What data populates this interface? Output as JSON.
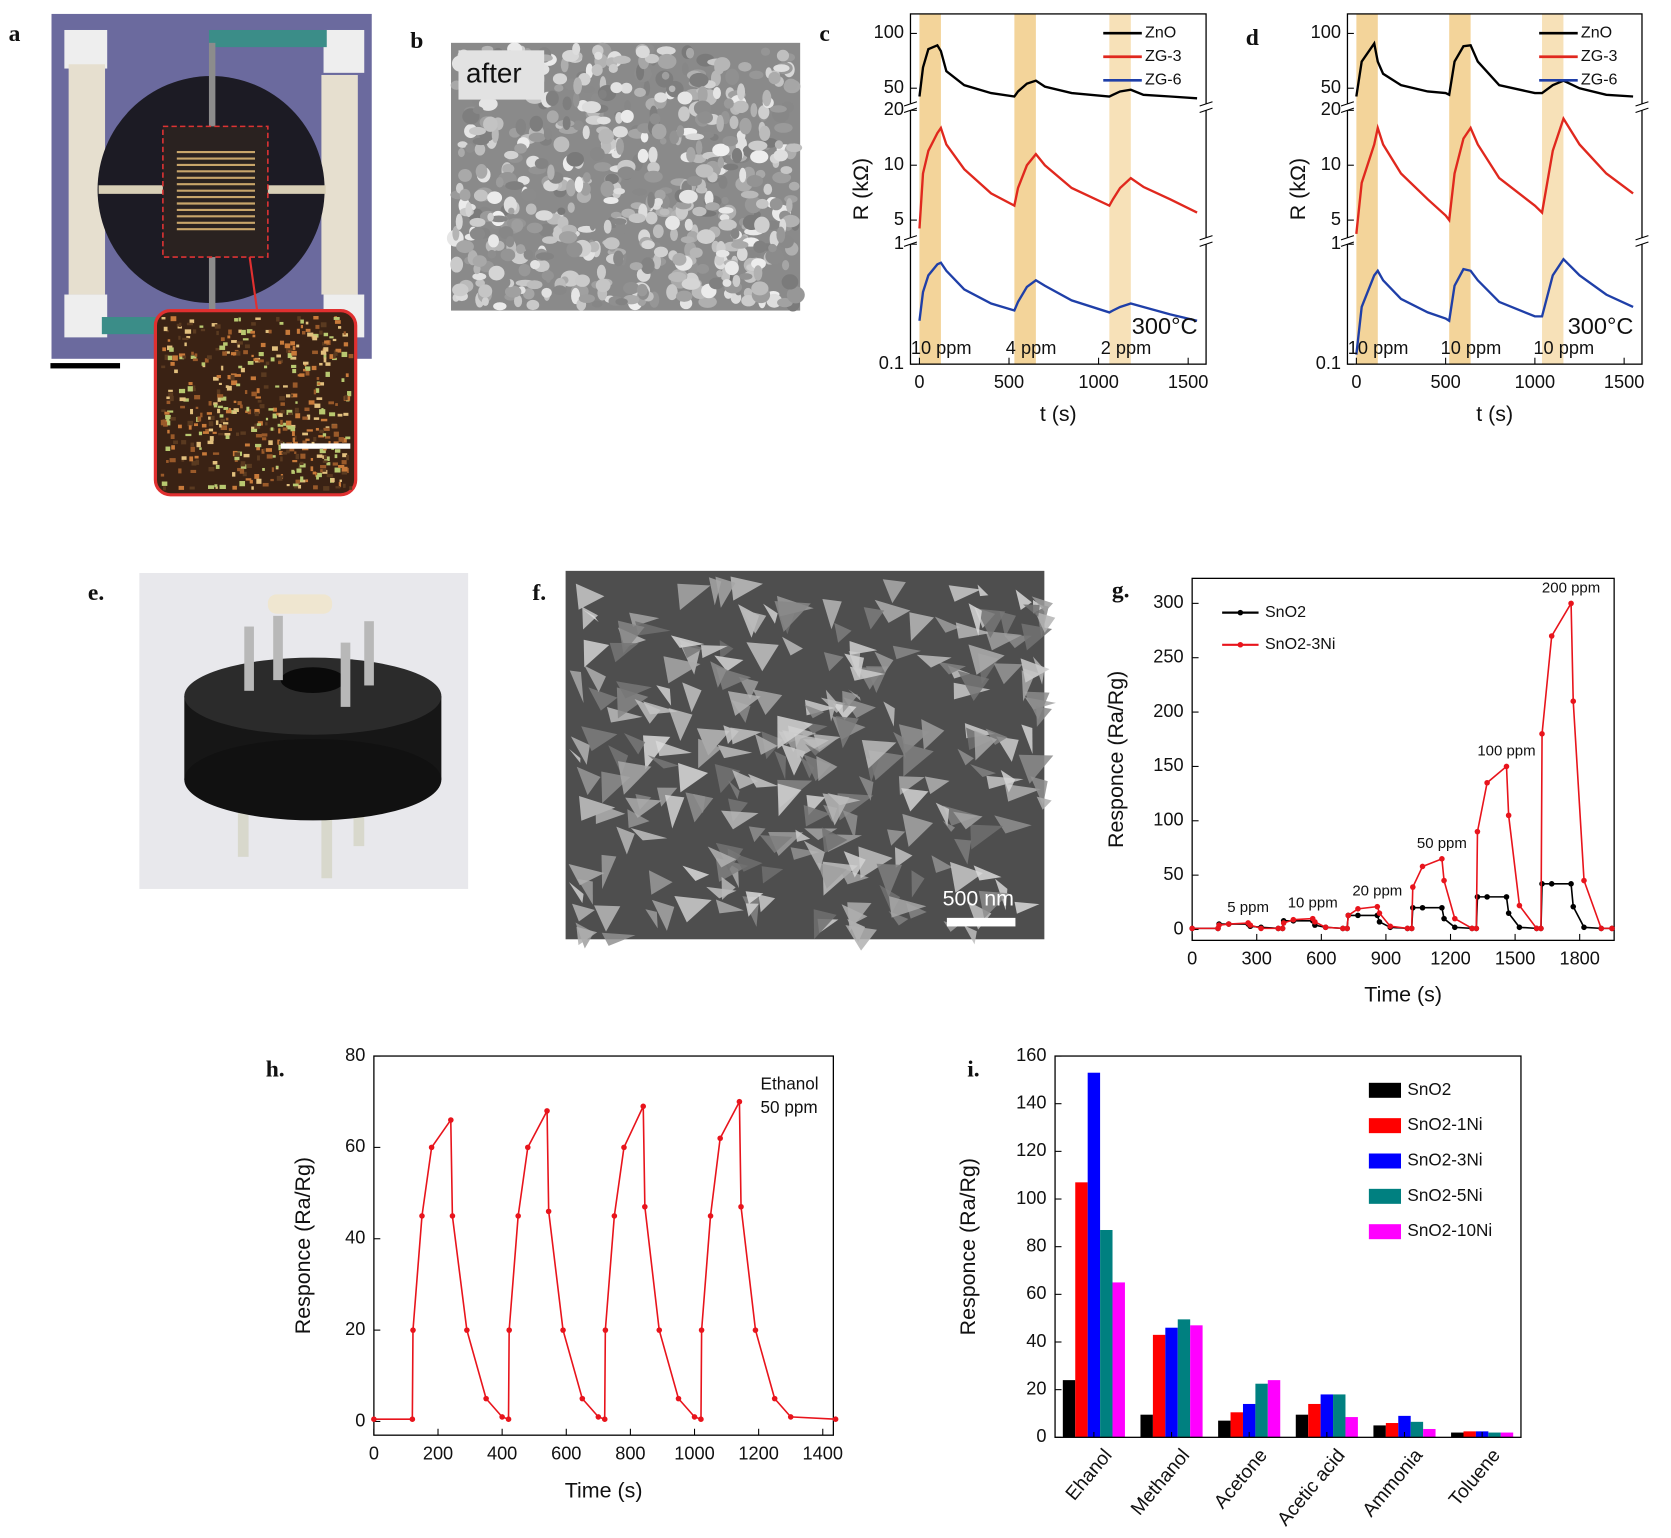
{
  "panels": {
    "a": "a",
    "b": "b",
    "e": "e.",
    "f": "f."
  },
  "image_texts": {
    "b": "after",
    "f": "500 nm"
  },
  "chart_data": [
    {
      "type": "broken-line",
      "panel_label": "c",
      "xlabel": "t (s)",
      "ylabel": "R (kΩ)",
      "ylog": true,
      "xlim": [
        -50,
        1600
      ],
      "xticks": [
        0,
        500,
        1000,
        1500
      ],
      "segments": [
        {
          "ylim": [
            41,
            128
          ],
          "yticks": [
            50,
            100
          ]
        },
        {
          "ylim": [
            4,
            20
          ],
          "yticks": [
            5,
            10,
            20
          ]
        },
        {
          "ylim": [
            0.1,
            1
          ],
          "yticks": [
            0.1,
            1
          ]
        }
      ],
      "shaded": [
        [
          0,
          120
        ],
        [
          530,
          650
        ],
        [
          1060,
          1180
        ]
      ],
      "shade_color": "#f3d49a",
      "annotations": [
        "10 ppm",
        "4 ppm",
        "2 ppm",
        "300°C"
      ],
      "x": [
        0,
        20,
        50,
        100,
        120,
        150,
        250,
        400,
        530,
        550,
        600,
        650,
        700,
        850,
        1060,
        1080,
        1120,
        1180,
        1250,
        1400,
        1550
      ],
      "series": [
        {
          "name": "ZnO",
          "color": "#000000",
          "segment": 0,
          "values": [
            45,
            65,
            82,
            86,
            80,
            62,
            52,
            47,
            45,
            48,
            53,
            55,
            51,
            47,
            45,
            46,
            48,
            49,
            46,
            45,
            44
          ]
        },
        {
          "name": "ZG-3",
          "color": "#e0281e",
          "segment": 1,
          "values": [
            4.5,
            9,
            12,
            15,
            16,
            13,
            9.5,
            7,
            6,
            7.5,
            10,
            11.5,
            10,
            7.5,
            6,
            6.5,
            7.5,
            8.5,
            7.6,
            6.5,
            5.5
          ]
        },
        {
          "name": "ZG-6",
          "color": "#1f3fa8",
          "segment": 2,
          "values": [
            0.23,
            0.4,
            0.55,
            0.68,
            0.7,
            0.6,
            0.42,
            0.32,
            0.28,
            0.33,
            0.44,
            0.5,
            0.45,
            0.34,
            0.27,
            0.28,
            0.3,
            0.32,
            0.3,
            0.26,
            0.23
          ]
        }
      ]
    },
    {
      "type": "broken-line",
      "panel_label": "d",
      "xlabel": "t (s)",
      "ylabel": "R (kΩ)",
      "ylog": true,
      "xlim": [
        -50,
        1600
      ],
      "xticks": [
        0,
        500,
        1000,
        1500
      ],
      "segments": [
        {
          "ylim": [
            41,
            128
          ],
          "yticks": [
            50,
            100
          ]
        },
        {
          "ylim": [
            4,
            20
          ],
          "yticks": [
            5,
            10,
            20
          ]
        },
        {
          "ylim": [
            0.1,
            1
          ],
          "yticks": [
            0.1,
            1
          ]
        }
      ],
      "shaded": [
        [
          0,
          120
        ],
        [
          520,
          640
        ],
        [
          1040,
          1160
        ]
      ],
      "shade_color": "#f3d49a",
      "annotations": [
        "10 ppm",
        "10 ppm",
        "10 ppm",
        "300°C"
      ],
      "x": [
        0,
        30,
        100,
        120,
        150,
        250,
        400,
        500,
        520,
        550,
        600,
        640,
        680,
        800,
        1000,
        1040,
        1100,
        1160,
        1250,
        1400,
        1550
      ],
      "series": [
        {
          "name": "ZnO",
          "color": "#000000",
          "segment": 0,
          "values": [
            45,
            70,
            88,
            70,
            60,
            52,
            48,
            47,
            46,
            70,
            85,
            86,
            70,
            52,
            47,
            47,
            52,
            55,
            50,
            46,
            45
          ]
        },
        {
          "name": "ZG-3",
          "color": "#e0281e",
          "segment": 1,
          "values": [
            4.2,
            8,
            13,
            16,
            13,
            9,
            6.5,
            5.3,
            5,
            9,
            14,
            16,
            13,
            8.5,
            6,
            5.5,
            12,
            18,
            13,
            9,
            7
          ]
        },
        {
          "name": "ZG-6",
          "color": "#1f3fa8",
          "segment": 2,
          "values": [
            0.12,
            0.3,
            0.55,
            0.6,
            0.5,
            0.35,
            0.27,
            0.24,
            0.23,
            0.45,
            0.62,
            0.6,
            0.5,
            0.33,
            0.25,
            0.25,
            0.55,
            0.75,
            0.55,
            0.38,
            0.3
          ]
        }
      ]
    },
    {
      "type": "line",
      "panel_label": "g.",
      "xlabel": "Time (s)",
      "ylabel": "Responce (Ra/Rg)",
      "xlim": [
        0,
        1960
      ],
      "xticks": [
        0,
        300,
        600,
        900,
        1200,
        1500,
        1800
      ],
      "ylim": [
        -10,
        323
      ],
      "yticks": [
        0,
        50,
        100,
        150,
        200,
        250,
        300
      ],
      "legend": "upper left",
      "marker": true,
      "annotations": [
        "5 ppm",
        "10 ppm",
        "20 ppm",
        "50 ppm",
        "100 ppm",
        "200 ppm"
      ],
      "x": [
        0,
        120,
        125,
        170,
        260,
        270,
        320,
        400,
        420,
        425,
        470,
        560,
        570,
        620,
        700,
        720,
        725,
        770,
        860,
        870,
        920,
        1000,
        1020,
        1025,
        1070,
        1160,
        1170,
        1220,
        1300,
        1320,
        1325,
        1370,
        1460,
        1470,
        1520,
        1600,
        1620,
        1625,
        1670,
        1760,
        1770,
        1820,
        1900,
        1950
      ],
      "series": [
        {
          "name": "SnO2",
          "color": "#000000",
          "values": [
            1,
            1,
            5,
            5,
            5,
            3,
            2,
            1,
            1,
            8,
            8,
            8,
            4,
            2,
            1,
            1,
            13,
            13,
            13,
            7,
            2,
            1,
            1,
            20,
            20,
            20,
            10,
            2,
            1,
            1,
            30,
            30,
            30,
            15,
            2,
            1,
            1,
            42,
            42,
            42,
            21,
            2,
            1,
            1
          ]
        },
        {
          "name": "SnO2-3Ni",
          "color": "#e8141c",
          "values": [
            1,
            1,
            4,
            5,
            6,
            4,
            1,
            1,
            1,
            6,
            9,
            10,
            7,
            2,
            1,
            1,
            13,
            19,
            21,
            15,
            3,
            1,
            1,
            39,
            58,
            65,
            45,
            10,
            1,
            1,
            90,
            135,
            150,
            105,
            22,
            1,
            1,
            180,
            270,
            300,
            210,
            45,
            1,
            1
          ]
        }
      ]
    },
    {
      "type": "line",
      "panel_label": "h.",
      "xlabel": "Time (s)",
      "ylabel": "Responce (Ra/Rg)",
      "xlim": [
        0,
        1433
      ],
      "xticks": [
        0,
        200,
        400,
        600,
        800,
        1000,
        1200,
        1400
      ],
      "ylim": [
        -3,
        80
      ],
      "yticks": [
        0,
        20,
        40,
        60,
        80
      ],
      "marker": true,
      "annotations": [
        "Ethanol",
        "50 ppm"
      ],
      "x": [
        0,
        120,
        122,
        150,
        180,
        240,
        245,
        290,
        350,
        400,
        420,
        422,
        450,
        480,
        540,
        545,
        590,
        650,
        700,
        720,
        722,
        750,
        780,
        840,
        845,
        890,
        950,
        1000,
        1020,
        1022,
        1050,
        1080,
        1140,
        1145,
        1190,
        1250,
        1300,
        1440
      ],
      "series": [
        {
          "name": "Ethanol",
          "color": "#e8141c",
          "values": [
            0.5,
            0.5,
            20,
            45,
            60,
            66,
            45,
            20,
            5,
            1,
            0.5,
            20,
            45,
            60,
            68,
            46,
            20,
            5,
            1,
            0.5,
            20,
            45,
            60,
            69,
            47,
            20,
            5,
            1,
            0.5,
            20,
            45,
            62,
            70,
            47,
            20,
            5,
            1,
            0.5
          ]
        }
      ]
    },
    {
      "type": "bar",
      "panel_label": "i.",
      "ylabel": "Responce (Ra/Rg)",
      "categories": [
        "Ehanol",
        "Methanol",
        "Acetone",
        "Acetic acid",
        "Ammonia",
        "Toluene"
      ],
      "ylim": [
        0,
        160
      ],
      "yticks": [
        0,
        20,
        40,
        60,
        80,
        100,
        120,
        140,
        160
      ],
      "legend": "upper right",
      "series": [
        {
          "name": "SnO2",
          "color": "#000000",
          "values": [
            24,
            9.5,
            7,
            9.5,
            5,
            2
          ]
        },
        {
          "name": "SnO2-1Ni",
          "color": "#ff0000",
          "values": [
            107,
            43,
            10.5,
            14,
            6,
            2.5
          ]
        },
        {
          "name": "SnO2-3Ni",
          "color": "#0000ff",
          "values": [
            153,
            46,
            14,
            18,
            9,
            2.5
          ]
        },
        {
          "name": "SnO2-5Ni",
          "color": "#008080",
          "values": [
            87,
            49.5,
            22.5,
            18,
            6.5,
            2
          ]
        },
        {
          "name": "SnO2-10Ni",
          "color": "#ff00ff",
          "values": [
            65,
            47,
            24,
            8.5,
            3.5,
            2
          ]
        }
      ]
    }
  ]
}
